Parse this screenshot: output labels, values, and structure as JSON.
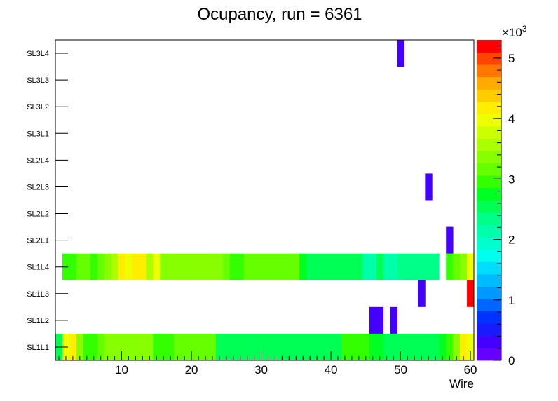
{
  "chart_data": {
    "type": "heatmap",
    "title": "Ocupancy, run = 6361",
    "xlabel": "Wire",
    "ylabel": "",
    "x_range": [
      0.5,
      60.5
    ],
    "x_ticks": [
      10,
      20,
      30,
      40,
      50,
      60
    ],
    "y_categories": [
      "SL1L1",
      "SL1L2",
      "SL1L3",
      "SL1L4",
      "SL2L1",
      "SL2L2",
      "SL2L3",
      "SL2L4",
      "SL3L1",
      "SL3L2",
      "SL3L3",
      "SL3L4"
    ],
    "z_range": [
      0,
      5300
    ],
    "z_ticks": [
      0,
      1,
      2,
      3,
      4,
      5
    ],
    "z_multiplier_label": "×10",
    "z_multiplier_exp": "3",
    "cells": {
      "SL1L1": [
        2450,
        4000,
        4250,
        3350,
        2950,
        2950,
        3100,
        3350,
        3350,
        3400,
        3350,
        3350,
        3350,
        3350,
        2950,
        2950,
        2950,
        3100,
        3100,
        3100,
        3100,
        3100,
        3100,
        2600,
        2600,
        2600,
        2600,
        2600,
        2600,
        2600,
        2600,
        2600,
        2600,
        2600,
        2600,
        2600,
        2600,
        2600,
        2600,
        2600,
        2600,
        2950,
        2950,
        2950,
        2950,
        2750,
        2750,
        2450,
        2450,
        2450,
        2450,
        2450,
        2450,
        2450,
        2450,
        2750,
        2950,
        3400,
        4250,
        4000
      ],
      "SL1L2": [
        0,
        0,
        0,
        0,
        0,
        0,
        0,
        0,
        0,
        0,
        0,
        0,
        0,
        0,
        0,
        0,
        0,
        0,
        0,
        0,
        0,
        0,
        0,
        0,
        0,
        0,
        0,
        0,
        0,
        0,
        0,
        0,
        0,
        0,
        0,
        0,
        0,
        0,
        0,
        0,
        0,
        0,
        0,
        0,
        0,
        350,
        350,
        0,
        350,
        0,
        0,
        0,
        0,
        0,
        0,
        0,
        0,
        0,
        0,
        0
      ],
      "SL1L3": [
        0,
        0,
        0,
        0,
        0,
        0,
        0,
        0,
        0,
        0,
        0,
        0,
        0,
        0,
        0,
        0,
        0,
        0,
        0,
        0,
        0,
        0,
        0,
        0,
        0,
        0,
        0,
        0,
        0,
        0,
        0,
        0,
        0,
        0,
        0,
        0,
        0,
        0,
        0,
        0,
        0,
        0,
        0,
        0,
        0,
        0,
        0,
        0,
        0,
        0,
        0,
        0,
        350,
        0,
        0,
        0,
        0,
        0,
        0,
        5300
      ],
      "SL1L4": [
        0,
        2950,
        2950,
        3100,
        3100,
        2950,
        3100,
        3400,
        3600,
        4250,
        4000,
        4250,
        4250,
        3600,
        4000,
        3400,
        3400,
        3350,
        3350,
        3350,
        3350,
        3350,
        3350,
        3350,
        3100,
        2950,
        2950,
        3100,
        3100,
        3100,
        3100,
        3100,
        3100,
        3100,
        3100,
        2750,
        2450,
        2450,
        2450,
        2450,
        2450,
        2450,
        2450,
        2450,
        2200,
        2050,
        2450,
        2050,
        2050,
        2250,
        2250,
        2250,
        2250,
        2250,
        2250,
        0,
        2950,
        3100,
        3400,
        4000
      ],
      "SL2L1": [
        0,
        0,
        0,
        0,
        0,
        0,
        0,
        0,
        0,
        0,
        0,
        0,
        0,
        0,
        0,
        0,
        0,
        0,
        0,
        0,
        0,
        0,
        0,
        0,
        0,
        0,
        0,
        0,
        0,
        0,
        0,
        0,
        0,
        0,
        0,
        0,
        0,
        0,
        0,
        0,
        0,
        0,
        0,
        0,
        0,
        0,
        0,
        0,
        0,
        0,
        0,
        0,
        0,
        0,
        0,
        0,
        350,
        0,
        0,
        0
      ],
      "SL2L2": [
        0,
        0,
        0,
        0,
        0,
        0,
        0,
        0,
        0,
        0,
        0,
        0,
        0,
        0,
        0,
        0,
        0,
        0,
        0,
        0,
        0,
        0,
        0,
        0,
        0,
        0,
        0,
        0,
        0,
        0,
        0,
        0,
        0,
        0,
        0,
        0,
        0,
        0,
        0,
        0,
        0,
        0,
        0,
        0,
        0,
        0,
        0,
        0,
        0,
        0,
        0,
        0,
        0,
        0,
        0,
        0,
        0,
        0,
        0,
        0
      ],
      "SL2L3": [
        0,
        0,
        0,
        0,
        0,
        0,
        0,
        0,
        0,
        0,
        0,
        0,
        0,
        0,
        0,
        0,
        0,
        0,
        0,
        0,
        0,
        0,
        0,
        0,
        0,
        0,
        0,
        0,
        0,
        0,
        0,
        0,
        0,
        0,
        0,
        0,
        0,
        0,
        0,
        0,
        0,
        0,
        0,
        0,
        0,
        0,
        0,
        0,
        0,
        0,
        0,
        0,
        0,
        350,
        0,
        0,
        0,
        0,
        0,
        0
      ],
      "SL2L4": [
        0,
        0,
        0,
        0,
        0,
        0,
        0,
        0,
        0,
        0,
        0,
        0,
        0,
        0,
        0,
        0,
        0,
        0,
        0,
        0,
        0,
        0,
        0,
        0,
        0,
        0,
        0,
        0,
        0,
        0,
        0,
        0,
        0,
        0,
        0,
        0,
        0,
        0,
        0,
        0,
        0,
        0,
        0,
        0,
        0,
        0,
        0,
        0,
        0,
        0,
        0,
        0,
        0,
        0,
        0,
        0,
        0,
        0,
        0,
        0
      ],
      "SL3L1": [
        0,
        0,
        0,
        0,
        0,
        0,
        0,
        0,
        0,
        0,
        0,
        0,
        0,
        0,
        0,
        0,
        0,
        0,
        0,
        0,
        0,
        0,
        0,
        0,
        0,
        0,
        0,
        0,
        0,
        0,
        0,
        0,
        0,
        0,
        0,
        0,
        0,
        0,
        0,
        0,
        0,
        0,
        0,
        0,
        0,
        0,
        0,
        0,
        0,
        0,
        0,
        0,
        0,
        0,
        0,
        0,
        0,
        0,
        0,
        0
      ],
      "SL3L2": [
        0,
        0,
        0,
        0,
        0,
        0,
        0,
        0,
        0,
        0,
        0,
        0,
        0,
        0,
        0,
        0,
        0,
        0,
        0,
        0,
        0,
        0,
        0,
        0,
        0,
        0,
        0,
        0,
        0,
        0,
        0,
        0,
        0,
        0,
        0,
        0,
        0,
        0,
        0,
        0,
        0,
        0,
        0,
        0,
        0,
        0,
        0,
        0,
        0,
        0,
        0,
        0,
        0,
        0,
        0,
        0,
        0,
        0,
        0,
        0
      ],
      "SL3L3": [
        0,
        0,
        0,
        0,
        0,
        0,
        0,
        0,
        0,
        0,
        0,
        0,
        0,
        0,
        0,
        0,
        0,
        0,
        0,
        0,
        0,
        0,
        0,
        0,
        0,
        0,
        0,
        0,
        0,
        0,
        0,
        0,
        0,
        0,
        0,
        0,
        0,
        0,
        0,
        0,
        0,
        0,
        0,
        0,
        0,
        0,
        0,
        0,
        0,
        0,
        0,
        0,
        0,
        0,
        0,
        0,
        0,
        0,
        0,
        0
      ],
      "SL3L4": [
        0,
        0,
        0,
        0,
        0,
        0,
        0,
        0,
        0,
        0,
        0,
        0,
        0,
        0,
        0,
        0,
        0,
        0,
        0,
        0,
        0,
        0,
        0,
        0,
        0,
        0,
        0,
        0,
        0,
        0,
        0,
        0,
        0,
        0,
        0,
        0,
        0,
        0,
        0,
        0,
        0,
        0,
        0,
        0,
        0,
        0,
        0,
        0,
        0,
        350,
        0,
        0,
        0,
        0,
        0,
        0,
        0,
        0,
        0,
        0
      ]
    },
    "palette": [
      "#6600ff",
      "#4400ff",
      "#1a1aff",
      "#0033ff",
      "#0066ff",
      "#0099ff",
      "#00bbff",
      "#00ddff",
      "#00ffee",
      "#00ffcc",
      "#00ffaa",
      "#00ff88",
      "#00ff55",
      "#00ff22",
      "#33ff00",
      "#66ff00",
      "#88ff00",
      "#aaff00",
      "#ccff00",
      "#eeff00",
      "#ffee00",
      "#ffcc00",
      "#ffaa00",
      "#ff7700",
      "#ff4400",
      "#ff0000"
    ]
  }
}
